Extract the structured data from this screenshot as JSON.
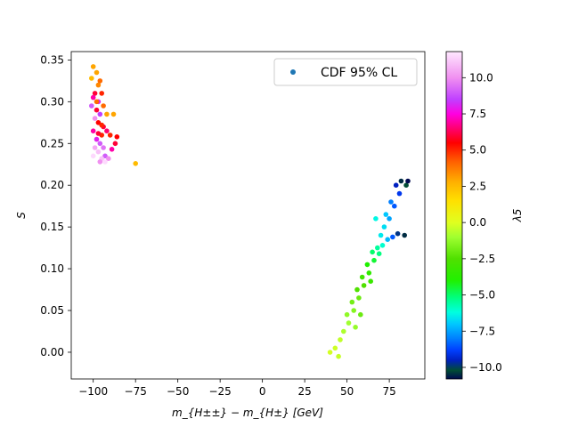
{
  "chart_data": {
    "type": "scatter",
    "xlabel": "m_{H±±} − m_{H±} [GeV]",
    "ylabel": "S",
    "xlim": [
      -113,
      96
    ],
    "ylim": [
      -0.032,
      0.36
    ],
    "xticks": [
      -100,
      -75,
      -50,
      -25,
      0,
      25,
      50,
      75
    ],
    "xtick_labels": [
      "−100",
      "−75",
      "−50",
      "−25",
      "0",
      "25",
      "50",
      "75"
    ],
    "yticks": [
      0.0,
      0.05,
      0.1,
      0.15,
      0.2,
      0.25,
      0.3,
      0.35
    ],
    "ytick_labels": [
      "0.00",
      "0.05",
      "0.10",
      "0.15",
      "0.20",
      "0.25",
      "0.30",
      "0.35"
    ],
    "legend": {
      "label": "CDF 95% CL",
      "placement": "upper right",
      "marker_color": "#1f77b4"
    },
    "colorbar": {
      "label": "λ5",
      "range": [
        -10.8,
        11.8
      ],
      "ticks": [
        -10.0,
        -7.5,
        -5.0,
        -2.5,
        0.0,
        2.5,
        5.0,
        7.5,
        10.0
      ],
      "tick_labels": [
        "−10.0",
        "−7.5",
        "−5.0",
        "−2.5",
        "0.0",
        "2.5",
        "5.0",
        "7.5",
        "10.0"
      ],
      "colormap": "gist_ncar-like",
      "stops": [
        {
          "v": -10.8,
          "c": "#000a50"
        },
        {
          "v": -10.2,
          "c": "#004d35"
        },
        {
          "v": -9.5,
          "c": "#0020c0"
        },
        {
          "v": -8.8,
          "c": "#0040ff"
        },
        {
          "v": -8.0,
          "c": "#0080ff"
        },
        {
          "v": -7.0,
          "c": "#00c8ff"
        },
        {
          "v": -6.2,
          "c": "#00ffe0"
        },
        {
          "v": -5.2,
          "c": "#00ff80"
        },
        {
          "v": -4.0,
          "c": "#20f000"
        },
        {
          "v": -2.5,
          "c": "#50e000"
        },
        {
          "v": -1.0,
          "c": "#a0ff30"
        },
        {
          "v": 0.0,
          "c": "#e0ff20"
        },
        {
          "v": 1.5,
          "c": "#ffe000"
        },
        {
          "v": 2.8,
          "c": "#ffb000"
        },
        {
          "v": 4.2,
          "c": "#ff6000"
        },
        {
          "v": 5.5,
          "c": "#ff0000"
        },
        {
          "v": 6.5,
          "c": "#ff0070"
        },
        {
          "v": 7.5,
          "c": "#ff00e0"
        },
        {
          "v": 8.5,
          "c": "#c040ff"
        },
        {
          "v": 10.0,
          "c": "#f090f0"
        },
        {
          "v": 11.8,
          "c": "#ffe8ff"
        }
      ]
    },
    "clusters": [
      {
        "name": "",
        "points": [
          [
            -100,
            0.342,
            3
          ],
          [
            -98,
            0.335,
            3
          ],
          [
            -101,
            0.328,
            2.5
          ],
          [
            -97,
            0.32,
            3.5
          ],
          [
            -99,
            0.31,
            6
          ],
          [
            -96,
            0.325,
            4
          ],
          [
            -100,
            0.305,
            7
          ],
          [
            -97,
            0.3,
            8
          ],
          [
            -95,
            0.31,
            5
          ],
          [
            -101,
            0.295,
            9
          ],
          [
            -98,
            0.29,
            6
          ],
          [
            -94,
            0.295,
            4
          ],
          [
            -96,
            0.285,
            8.5
          ],
          [
            -99,
            0.28,
            10
          ],
          [
            -92,
            0.285,
            3
          ],
          [
            -97,
            0.275,
            5.5
          ],
          [
            -94,
            0.27,
            6
          ],
          [
            -100,
            0.265,
            7
          ],
          [
            -95,
            0.26,
            5
          ],
          [
            -92,
            0.265,
            6.5
          ],
          [
            -98,
            0.255,
            8
          ],
          [
            -96,
            0.25,
            9
          ],
          [
            -90,
            0.26,
            5
          ],
          [
            -94,
            0.245,
            9.5
          ],
          [
            -99,
            0.245,
            10.5
          ],
          [
            -97,
            0.24,
            11
          ],
          [
            -93,
            0.235,
            9
          ],
          [
            -95,
            0.232,
            11
          ],
          [
            -100,
            0.235,
            11.5
          ],
          [
            -91,
            0.232,
            10
          ],
          [
            -96,
            0.228,
            10
          ],
          [
            -93,
            0.228,
            11.5
          ],
          [
            -89,
            0.243,
            7
          ],
          [
            -87,
            0.25,
            6
          ],
          [
            -86,
            0.258,
            5.5
          ],
          [
            -88,
            0.285,
            3
          ],
          [
            -75,
            0.226,
            2.5
          ],
          [
            -97,
            0.262,
            6
          ],
          [
            -95,
            0.272,
            5
          ],
          [
            -98,
            0.3,
            4
          ]
        ]
      },
      {
        "name": "",
        "points": [
          [
            82,
            0.205,
            -10.5
          ],
          [
            85,
            0.2,
            -10.2
          ],
          [
            79,
            0.2,
            -9.5
          ],
          [
            81,
            0.19,
            -9
          ],
          [
            76,
            0.18,
            -8
          ],
          [
            78,
            0.175,
            -8.5
          ],
          [
            73,
            0.165,
            -7
          ],
          [
            75,
            0.16,
            -7.5
          ],
          [
            84,
            0.14,
            -10.5
          ],
          [
            80,
            0.142,
            -9.8
          ],
          [
            77,
            0.138,
            -8.5
          ],
          [
            74,
            0.135,
            -7.2
          ],
          [
            70,
            0.14,
            -6.5
          ],
          [
            71,
            0.128,
            -6
          ],
          [
            68,
            0.125,
            -5.5
          ],
          [
            65,
            0.12,
            -5
          ],
          [
            66,
            0.11,
            -4.5
          ],
          [
            62,
            0.105,
            -4
          ],
          [
            63,
            0.095,
            -3.5
          ],
          [
            59,
            0.09,
            -3
          ],
          [
            60,
            0.08,
            -2.5
          ],
          [
            56,
            0.075,
            -2.5
          ],
          [
            57,
            0.065,
            -2
          ],
          [
            53,
            0.06,
            -1.8
          ],
          [
            54,
            0.05,
            -1.5
          ],
          [
            50,
            0.045,
            -1.3
          ],
          [
            51,
            0.035,
            -1
          ],
          [
            48,
            0.025,
            -0.8
          ],
          [
            46,
            0.015,
            -0.5
          ],
          [
            43,
            0.005,
            -0.3
          ],
          [
            40,
            0.0,
            -0.2
          ],
          [
            45,
            -0.005,
            -0.4
          ],
          [
            55,
            0.03,
            -1.2
          ],
          [
            58,
            0.045,
            -2
          ],
          [
            64,
            0.085,
            -3.2
          ],
          [
            69,
            0.118,
            -5.2
          ],
          [
            72,
            0.15,
            -6.7
          ],
          [
            67,
            0.16,
            -6.3
          ],
          [
            86,
            0.205,
            -10.8
          ]
        ]
      }
    ]
  }
}
